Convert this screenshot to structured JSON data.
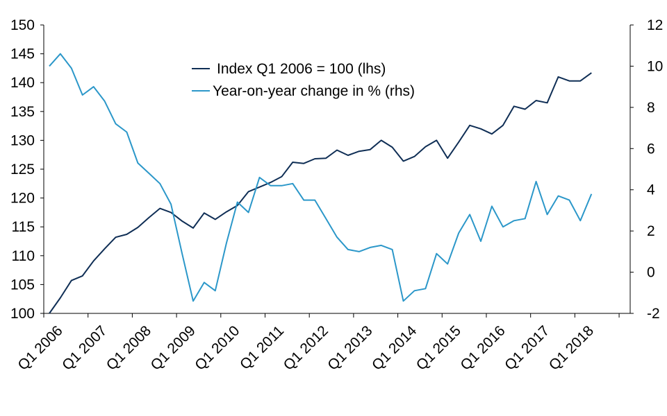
{
  "chart_data": {
    "type": "line",
    "x": [
      "Q1 2006",
      "Q2 2006",
      "Q3 2006",
      "Q4 2006",
      "Q1 2007",
      "Q2 2007",
      "Q3 2007",
      "Q4 2007",
      "Q1 2008",
      "Q2 2008",
      "Q3 2008",
      "Q4 2008",
      "Q1 2009",
      "Q2 2009",
      "Q3 2009",
      "Q4 2009",
      "Q1 2010",
      "Q2 2010",
      "Q3 2010",
      "Q4 2010",
      "Q1 2011",
      "Q2 2011",
      "Q3 2011",
      "Q4 2011",
      "Q1 2012",
      "Q2 2012",
      "Q3 2012",
      "Q4 2012",
      "Q1 2013",
      "Q2 2013",
      "Q3 2013",
      "Q4 2013",
      "Q1 2014",
      "Q2 2014",
      "Q3 2014",
      "Q4 2014",
      "Q1 2015",
      "Q2 2015",
      "Q3 2015",
      "Q4 2015",
      "Q1 2016",
      "Q2 2016",
      "Q3 2016",
      "Q4 2016",
      "Q1 2017",
      "Q2 2017",
      "Q3 2017",
      "Q4 2017",
      "Q1 2018",
      "Q2 2018",
      "Q3 2018",
      "Q4 2018",
      "Q1 2019"
    ],
    "x_tick_labels": [
      "Q1 2006",
      "Q1 2007",
      "Q1 2008",
      "Q1 2009",
      "Q1 2010",
      "Q1 2011",
      "Q1 2012",
      "Q1 2013",
      "Q1 2014",
      "Q1 2015",
      "Q1 2016",
      "Q1 2017",
      "Q1 2018"
    ],
    "series": [
      {
        "name": "Index Q1 2006 = 100 (lhs)",
        "axis": "left",
        "color": "#0f2e55",
        "values": [
          100.0,
          102.7,
          105.7,
          106.5,
          109.1,
          111.2,
          113.2,
          113.7,
          114.9,
          116.6,
          118.2,
          117.5,
          116.0,
          114.8,
          117.4,
          116.3,
          117.6,
          118.7,
          121.1,
          121.9,
          122.7,
          123.7,
          126.2,
          126.0,
          126.8,
          126.9,
          128.3,
          127.4,
          128.1,
          128.4,
          130.0,
          128.8,
          126.4,
          127.2,
          128.9,
          130.0,
          126.9,
          129.7,
          132.6,
          132.0,
          131.1,
          132.6,
          135.9,
          135.4,
          136.9,
          136.5,
          141.0,
          140.3,
          140.3,
          141.7,
          null,
          null,
          null
        ]
      },
      {
        "name": "Year-on-year change in % (rhs)",
        "axis": "right",
        "color": "#2b97c9",
        "values": [
          10.0,
          10.6,
          9.9,
          8.6,
          9.0,
          8.3,
          7.2,
          6.8,
          5.3,
          4.8,
          4.3,
          3.3,
          0.9,
          -1.4,
          -0.5,
          -0.9,
          1.4,
          3.4,
          2.9,
          4.6,
          4.2,
          4.2,
          4.3,
          3.5,
          3.5,
          2.6,
          1.7,
          1.1,
          1.0,
          1.2,
          1.3,
          1.1,
          -1.4,
          -0.9,
          -0.8,
          0.9,
          0.4,
          1.9,
          2.8,
          1.5,
          3.2,
          2.2,
          2.5,
          2.6,
          4.4,
          2.8,
          3.7,
          3.5,
          2.5,
          3.8,
          null,
          null,
          null
        ]
      }
    ],
    "y_left": {
      "min": 100,
      "max": 150,
      "ticks": [
        100,
        105,
        110,
        115,
        120,
        125,
        130,
        135,
        140,
        145,
        150
      ]
    },
    "y_right": {
      "min": -2,
      "max": 12,
      "ticks": [
        -2,
        0,
        2,
        4,
        6,
        8,
        10,
        12
      ]
    },
    "title": "",
    "legend_position": "top-center",
    "grid": false
  }
}
